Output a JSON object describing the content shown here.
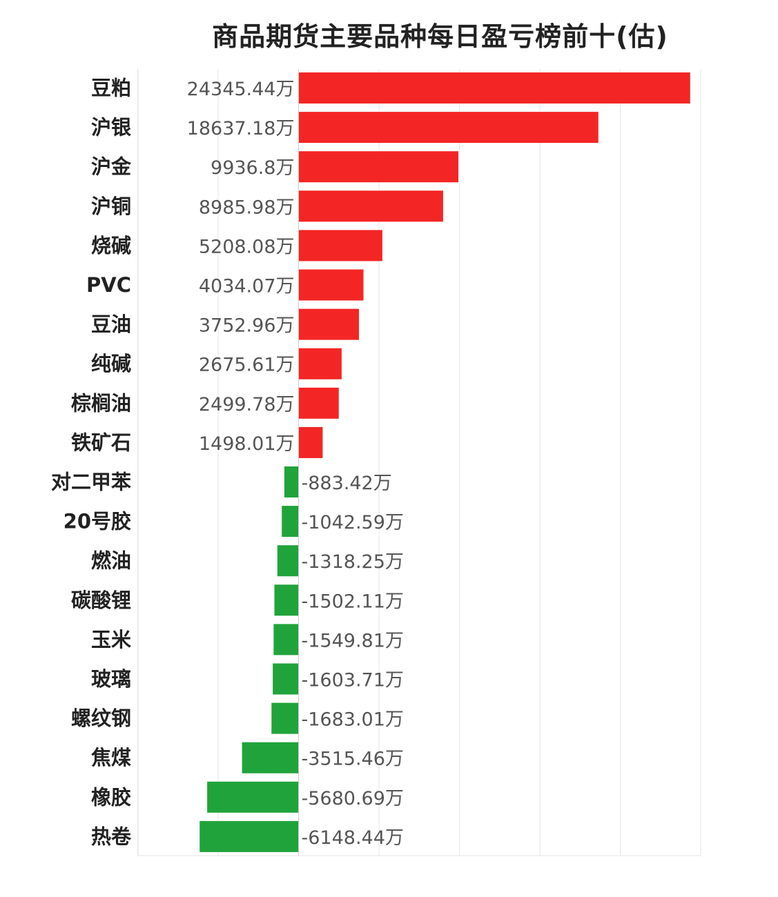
{
  "chart_data": {
    "type": "bar",
    "orientation": "horizontal",
    "title": "商品期货主要品种每日盈亏榜前十(估)",
    "unit": "万",
    "categories": [
      "豆粕",
      "沪银",
      "沪金",
      "沪铜",
      "烧碱",
      "PVC",
      "豆油",
      "纯碱",
      "棕榈油",
      "铁矿石",
      "对二甲苯",
      "20号胶",
      "燃油",
      "碳酸锂",
      "玉米",
      "玻璃",
      "螺纹钢",
      "焦煤",
      "橡胶",
      "热卷"
    ],
    "values": [
      24345.44,
      18637.18,
      9936.8,
      8985.98,
      5208.08,
      4034.07,
      3752.96,
      2675.61,
      2499.78,
      1498.01,
      -883.42,
      -1042.59,
      -1318.25,
      -1502.11,
      -1549.81,
      -1603.71,
      -1683.01,
      -3515.46,
      -5680.69,
      -6148.44
    ],
    "value_labels": [
      "24345.44万",
      "18637.18万",
      "9936.8万",
      "8985.98万",
      "5208.08万",
      "4034.07万",
      "3752.96万",
      "2675.61万",
      "2499.78万",
      "1498.01万",
      "-883.42万",
      "-1042.59万",
      "-1318.25万",
      "-1502.11万",
      "-1549.81万",
      "-1603.71万",
      "-1683.01万",
      "-3515.46万",
      "-5680.69万",
      "-6148.44万"
    ],
    "xlim": [
      -10000,
      25000
    ],
    "grid": true,
    "colors": {
      "positive": "#f42525",
      "negative": "#21a33b",
      "grid": "#e6e6e6"
    }
  }
}
